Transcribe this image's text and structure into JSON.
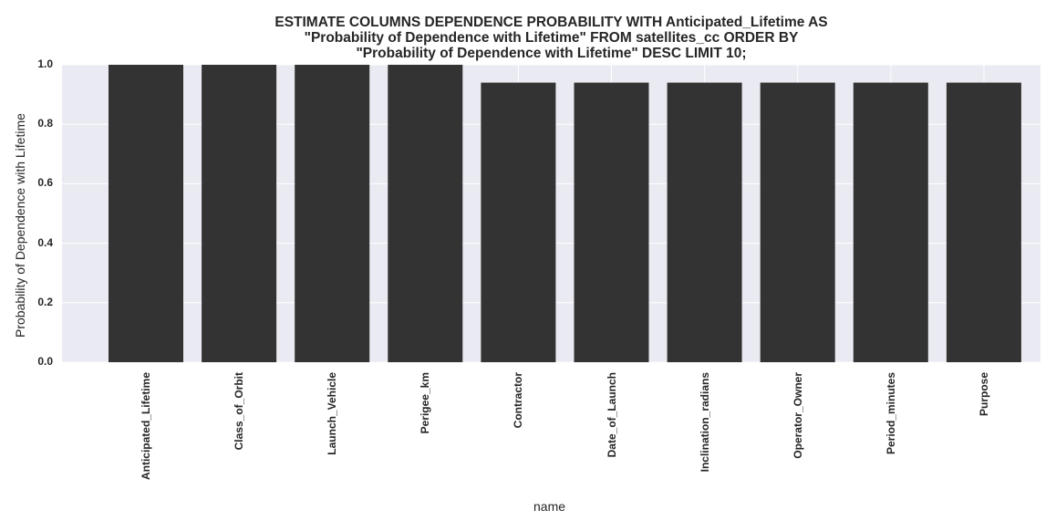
{
  "chart_data": {
    "type": "bar",
    "title_lines": [
      "ESTIMATE COLUMNS DEPENDENCE PROBABILITY WITH Anticipated_Lifetime AS",
      "\"Probability of Dependence with Lifetime\" FROM satellites_cc ORDER BY",
      "\"Probability of Dependence with Lifetime\" DESC LIMIT 10;"
    ],
    "xlabel": "name",
    "ylabel": "Probability of Dependence with Lifetime",
    "categories": [
      "Anticipated_Lifetime",
      "Class_of_Orbit",
      "Launch_Vehicle",
      "Perigee_km",
      "Contractor",
      "Date_of_Launch",
      "Inclination_radians",
      "Operator_Owner",
      "Period_minutes",
      "Purpose"
    ],
    "values": [
      1.0,
      1.0,
      1.0,
      1.0,
      0.94,
      0.94,
      0.94,
      0.94,
      0.94,
      0.94
    ],
    "ylim": [
      0,
      1.0
    ],
    "yticks": [
      "0.0",
      "0.2",
      "0.4",
      "0.6",
      "0.8",
      "1.0"
    ],
    "grid": true,
    "colors": {
      "bar": "#333333",
      "plot_bg": "#eaeaf2",
      "grid": "#ffffff"
    }
  }
}
